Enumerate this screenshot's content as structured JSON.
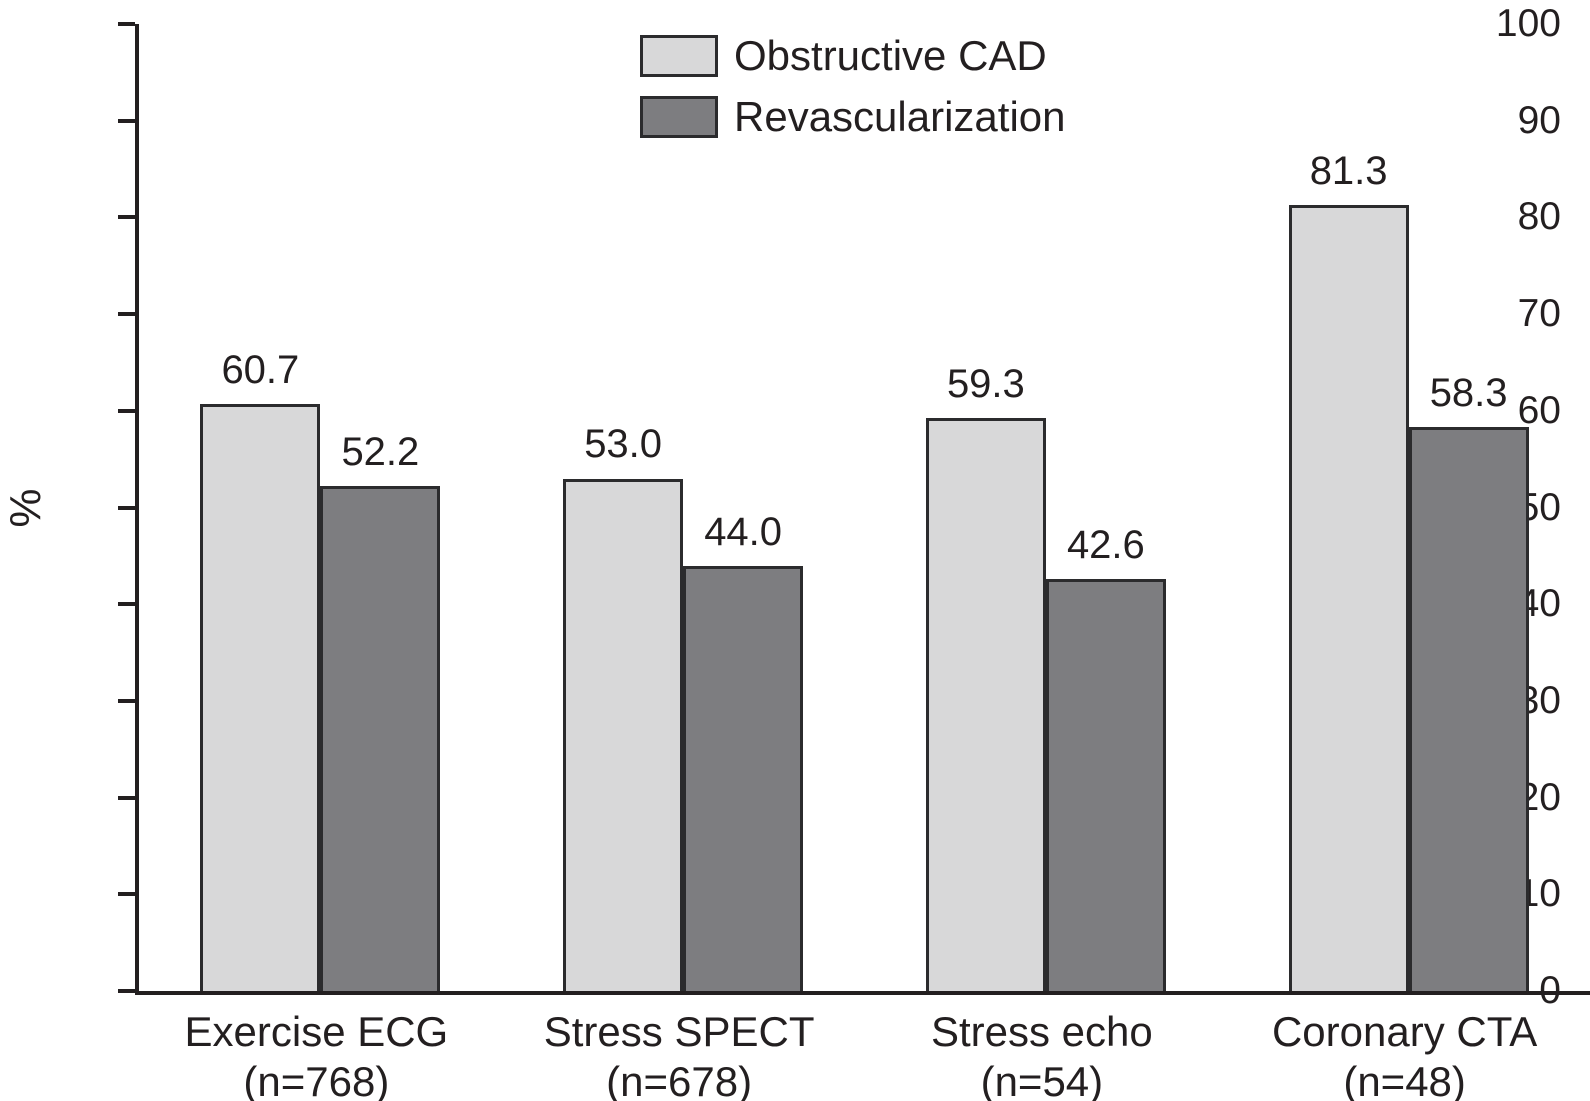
{
  "chart_data": {
    "type": "bar",
    "title": "",
    "xlabel": "",
    "ylabel": "%",
    "ylim": [
      0,
      100
    ],
    "yticks": [
      0,
      10,
      20,
      30,
      40,
      50,
      60,
      70,
      80,
      90,
      100
    ],
    "grid": false,
    "value_labels": true,
    "legend_position": "top-center",
    "categories": [
      "Exercise ECG",
      "Stress SPECT",
      "Stress echo",
      "Coronary CTA"
    ],
    "category_sublabels": [
      "(n=768)",
      "(n=678)",
      "(n=54)",
      "(n=48)"
    ],
    "series": [
      {
        "name": "Obstructive CAD",
        "color": "#d8d8d9",
        "values": [
          60.7,
          53.0,
          59.3,
          81.3
        ]
      },
      {
        "name": "Revascularization",
        "color": "#7d7d80",
        "values": [
          52.2,
          44.0,
          42.6,
          58.3
        ]
      }
    ]
  },
  "colors": {
    "axis": "#231f20",
    "text": "#231f20",
    "background": "#ffffff",
    "bar_border": "#2b2b2d"
  }
}
